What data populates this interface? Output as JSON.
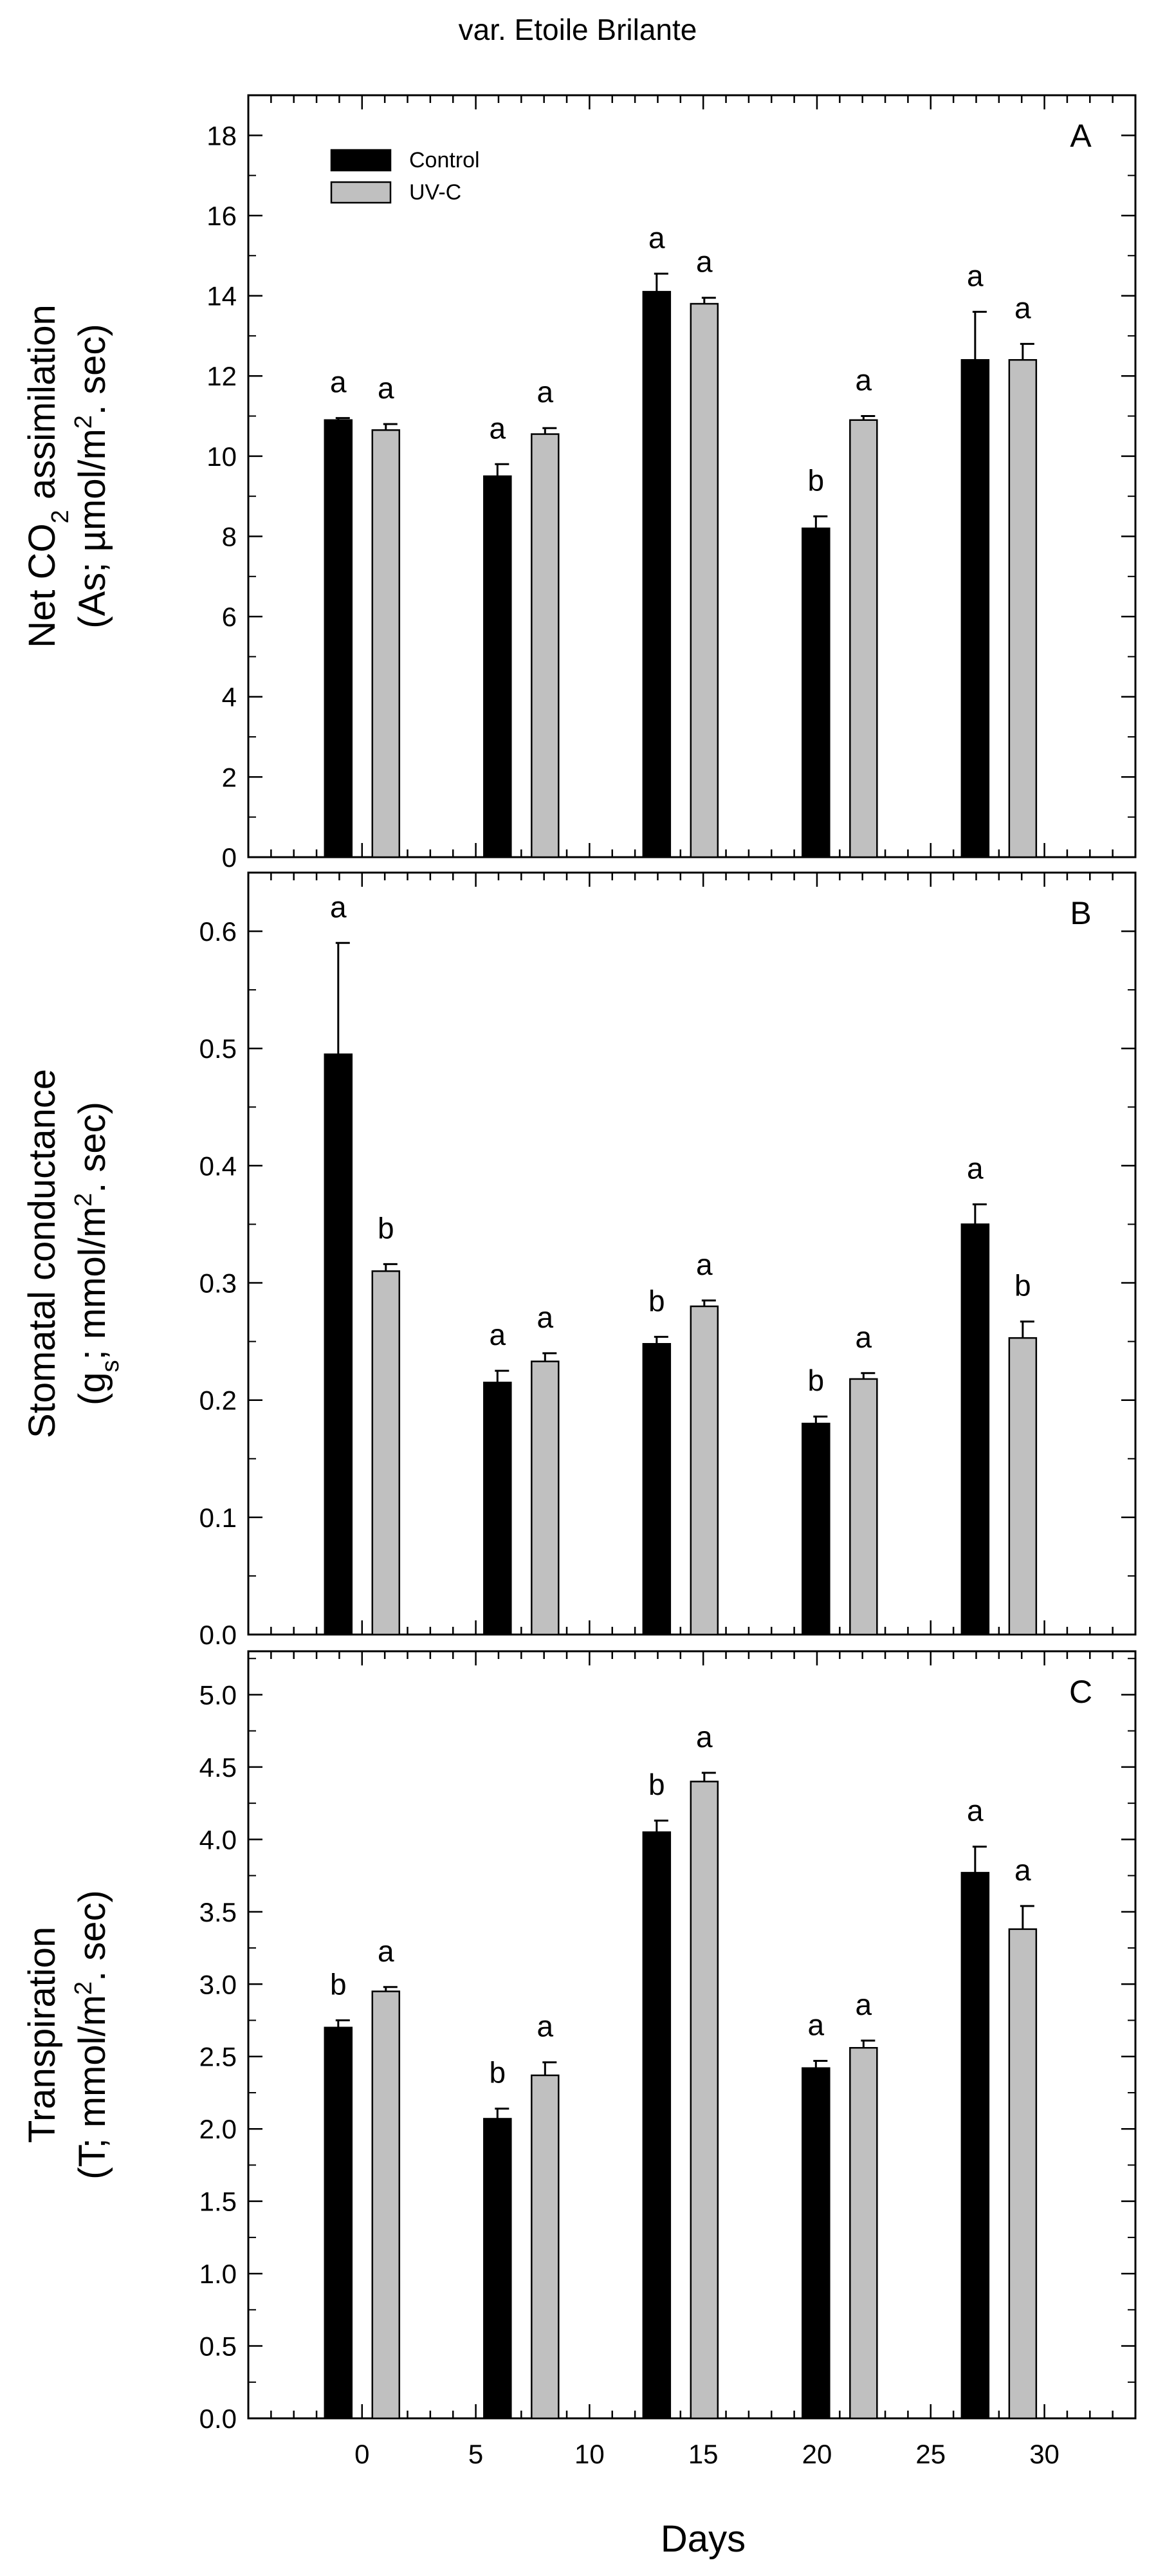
{
  "figure_title": "var. Etoile Brilante",
  "chart_data": [
    {
      "type": "bar",
      "panel_label": "A",
      "title": "var. Etoile Brilante",
      "ylabel_line1": "Net CO",
      "ylabel_line1_sub": "2",
      "ylabel_line1_tail": " assimilation",
      "ylabel_line2": "(As; µmol/m",
      "ylabel_line2_sup": "2",
      "ylabel_line2_tail": ". sec)",
      "xlabel": "Days",
      "ylim": [
        0,
        19
      ],
      "yticks": [
        0,
        2,
        4,
        6,
        8,
        10,
        12,
        14,
        16,
        18
      ],
      "ytick_labels": [
        "0",
        "2",
        "4",
        "6",
        "8",
        "10",
        "12",
        "14",
        "16",
        "18"
      ],
      "xlim": [
        -5,
        34
      ],
      "xticks": [
        0,
        5,
        10,
        15,
        20,
        25,
        30
      ],
      "xtick_labels": [
        "0",
        "5",
        "10",
        "15",
        "20",
        "25",
        "30"
      ],
      "legend": [
        {
          "name": "Control",
          "color": "#000000"
        },
        {
          "name": "UV-C",
          "color": "#c0c0c0"
        }
      ],
      "series": [
        {
          "name": "Control",
          "color": "#000000",
          "x": [
            0,
            7,
            14,
            21,
            28
          ],
          "values": [
            10.9,
            9.5,
            14.1,
            8.2,
            12.4
          ],
          "errors": [
            0.05,
            0.3,
            0.45,
            0.3,
            1.2
          ],
          "letters": [
            "a",
            "a",
            "a",
            "b",
            "a"
          ]
        },
        {
          "name": "UV-C",
          "color": "#c0c0c0",
          "x": [
            0,
            7,
            14,
            21,
            28
          ],
          "values": [
            10.65,
            10.55,
            13.8,
            10.9,
            12.4
          ],
          "errors": [
            0.15,
            0.15,
            0.15,
            0.1,
            0.4
          ],
          "letters": [
            "a",
            "a",
            "a",
            "a",
            "a"
          ]
        }
      ]
    },
    {
      "type": "bar",
      "panel_label": "B",
      "ylabel_line1": "Stomatal conductance",
      "ylabel_line2": "(g",
      "ylabel_line2_sub": "s",
      "ylabel_line2_mid": "; mmol/m",
      "ylabel_line2_sup": "2",
      "ylabel_line2_tail": ". sec)",
      "xlabel": "Days",
      "ylim": [
        0,
        0.65
      ],
      "yticks": [
        0,
        0.1,
        0.2,
        0.3,
        0.4,
        0.5,
        0.6
      ],
      "ytick_labels": [
        "0.0",
        "0.1",
        "0.2",
        "0.3",
        "0.4",
        "0.5",
        "0.6"
      ],
      "xlim": [
        -5,
        34
      ],
      "xticks": [
        0,
        5,
        10,
        15,
        20,
        25,
        30
      ],
      "xtick_labels": [
        "0",
        "5",
        "10",
        "15",
        "20",
        "25",
        "30"
      ],
      "series": [
        {
          "name": "Control",
          "color": "#000000",
          "x": [
            0,
            7,
            14,
            21,
            28
          ],
          "values": [
            0.495,
            0.215,
            0.248,
            0.18,
            0.35
          ],
          "errors": [
            0.095,
            0.01,
            0.006,
            0.006,
            0.017
          ],
          "letters": [
            "a",
            "a",
            "b",
            "b",
            "a"
          ]
        },
        {
          "name": "UV-C",
          "color": "#c0c0c0",
          "x": [
            0,
            7,
            14,
            21,
            28
          ],
          "values": [
            0.31,
            0.233,
            0.28,
            0.218,
            0.253
          ],
          "errors": [
            0.006,
            0.007,
            0.005,
            0.005,
            0.014
          ],
          "letters": [
            "b",
            "a",
            "a",
            "a",
            "b"
          ]
        }
      ]
    },
    {
      "type": "bar",
      "panel_label": "C",
      "ylabel_line1": "Transpiration",
      "ylabel_line2": "(T; mmol/m",
      "ylabel_line2_sup": "2",
      "ylabel_line2_tail": ". sec)",
      "xlabel": "Days",
      "ylim": [
        0,
        5.3
      ],
      "yticks": [
        0,
        0.5,
        1.0,
        1.5,
        2.0,
        2.5,
        3.0,
        3.5,
        4.0,
        4.5,
        5.0
      ],
      "ytick_labels": [
        "0.0",
        "0.5",
        "1.0",
        "1.5",
        "2.0",
        "2.5",
        "3.0",
        "3.5",
        "4.0",
        "4.5",
        "5.0"
      ],
      "xlim": [
        -5,
        34
      ],
      "xticks": [
        0,
        5,
        10,
        15,
        20,
        25,
        30
      ],
      "xtick_labels": [
        "0",
        "5",
        "10",
        "15",
        "20",
        "25",
        "30"
      ],
      "series": [
        {
          "name": "Control",
          "color": "#000000",
          "x": [
            0,
            7,
            14,
            21,
            28
          ],
          "values": [
            2.7,
            2.07,
            4.05,
            2.42,
            3.77
          ],
          "errors": [
            0.05,
            0.07,
            0.08,
            0.05,
            0.18
          ],
          "letters": [
            "b",
            "b",
            "b",
            "a",
            "a"
          ]
        },
        {
          "name": "UV-C",
          "color": "#c0c0c0",
          "x": [
            0,
            7,
            14,
            21,
            28
          ],
          "values": [
            2.95,
            2.37,
            4.4,
            2.56,
            3.38
          ],
          "errors": [
            0.03,
            0.09,
            0.06,
            0.05,
            0.16
          ],
          "letters": [
            "a",
            "a",
            "a",
            "a",
            "a"
          ]
        }
      ]
    }
  ]
}
